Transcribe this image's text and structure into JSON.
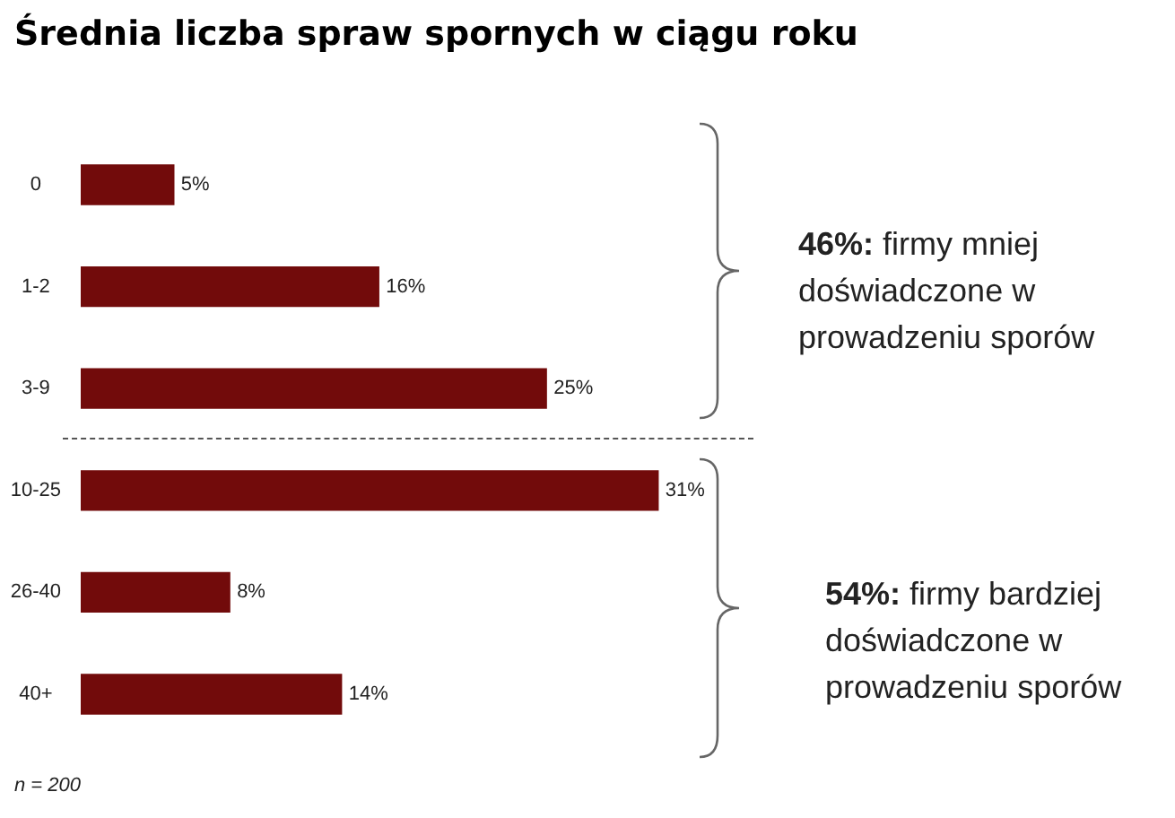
{
  "chart_data": {
    "type": "bar",
    "orientation": "horizontal",
    "title": "Średnia liczba spraw spornych w ciągu roku",
    "categories": [
      "0",
      "1-2",
      "3-9",
      "10-25",
      "26-40",
      "40+"
    ],
    "values": [
      5,
      16,
      25,
      31,
      8,
      14
    ],
    "value_labels": [
      "5%",
      "16%",
      "25%",
      "31%",
      "8%",
      "14%"
    ],
    "color": "#720b0b",
    "annotations": [
      "46%: firmy mniej doświadczone w prowadzeniu sporów",
      "54%: firmy bardziej doświadczone w prowadzeniu sporów",
      "n = 200"
    ],
    "legend": false
  }
}
